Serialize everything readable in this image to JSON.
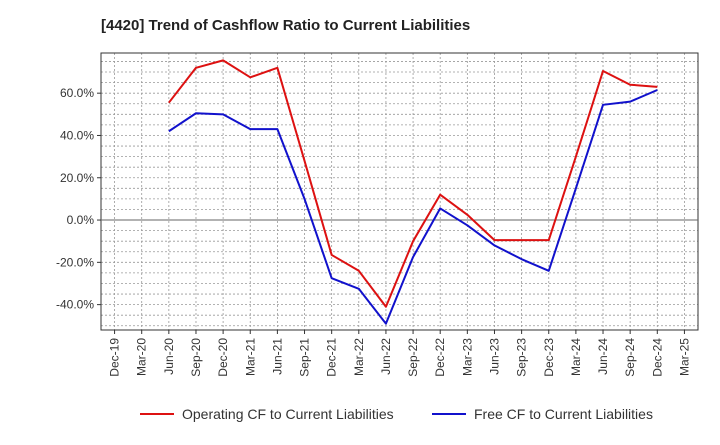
{
  "chart_data": {
    "type": "line",
    "title": "[4420]  Trend of Cashflow Ratio to Current Liabilities",
    "xlabel": "",
    "ylabel": "",
    "categories": [
      "Dec-19",
      "Mar-20",
      "Jun-20",
      "Sep-20",
      "Dec-20",
      "Mar-21",
      "Jun-21",
      "Sep-21",
      "Dec-21",
      "Mar-22",
      "Jun-22",
      "Sep-22",
      "Dec-22",
      "Mar-23",
      "Jun-23",
      "Sep-23",
      "Dec-23",
      "Mar-24",
      "Jun-24",
      "Sep-24",
      "Dec-24",
      "Mar-25"
    ],
    "ylim": [
      -52,
      79
    ],
    "yticks": [
      -40,
      -20,
      0,
      20,
      40,
      60
    ],
    "ytick_labels": [
      "-40.0%",
      "-20.0%",
      "0.0%",
      "20.0%",
      "40.0%",
      "60.0%"
    ],
    "grid": true,
    "legend_position": "bottom",
    "series": [
      {
        "name": "Operating CF to Current Liabilities",
        "color": "#dd1111",
        "values": [
          null,
          null,
          55.5,
          72.0,
          75.5,
          67.5,
          72.0,
          28.0,
          -16.5,
          -24.0,
          -41.0,
          -10.0,
          12.0,
          2.5,
          -9.5,
          -9.5,
          -9.5,
          30.0,
          70.5,
          64.0,
          63.0,
          null
        ]
      },
      {
        "name": "Free CF to Current Liabilities",
        "color": "#1111cc",
        "values": [
          null,
          null,
          42.0,
          50.5,
          50.0,
          43.0,
          43.0,
          10.0,
          -27.5,
          -32.5,
          -49.0,
          -17.5,
          5.5,
          -2.5,
          -12.0,
          -18.5,
          -24.0,
          15.0,
          54.5,
          56.0,
          61.5,
          null
        ]
      }
    ]
  }
}
